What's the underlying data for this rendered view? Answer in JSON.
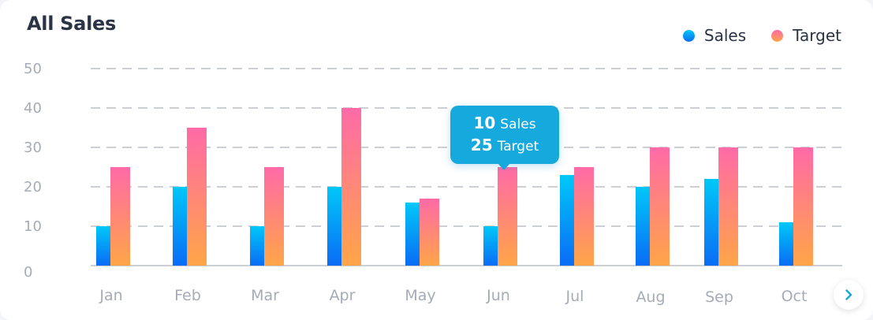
{
  "card": {
    "title": "All Sales"
  },
  "legend": {
    "sales_label": "Sales",
    "target_label": "Target"
  },
  "tooltip": {
    "sales_value": "10",
    "sales_label": "Sales",
    "target_value": "25",
    "target_label": "Target",
    "category": "Jun"
  },
  "colors": {
    "sales_top": "#00c8f8",
    "sales_bottom": "#0a6cf5",
    "target_top": "#ff6aa7",
    "target_bottom": "#ffa548",
    "grid": "#9aa0aa",
    "tick": "#a6abb8",
    "tooltip_bg": "#16a9dd"
  },
  "next_button": {
    "icon": "chevron-right-icon"
  },
  "chart_data": {
    "type": "bar",
    "title": "All Sales",
    "categories": [
      "Jan",
      "Feb",
      "Mar",
      "Apr",
      "May",
      "Jun",
      "Jul",
      "Aug",
      "Sep",
      "Oct"
    ],
    "series": [
      {
        "name": "Sales",
        "values": [
          10,
          20,
          10,
          20,
          16,
          10,
          23,
          20,
          22,
          11
        ]
      },
      {
        "name": "Target",
        "values": [
          25,
          35,
          25,
          40,
          17,
          25,
          25,
          30,
          30,
          30
        ]
      }
    ],
    "yticks": [
      0,
      10,
      20,
      30,
      40,
      50
    ],
    "ylim": [
      0,
      50
    ],
    "grid": true,
    "legend_position": "top-right"
  }
}
